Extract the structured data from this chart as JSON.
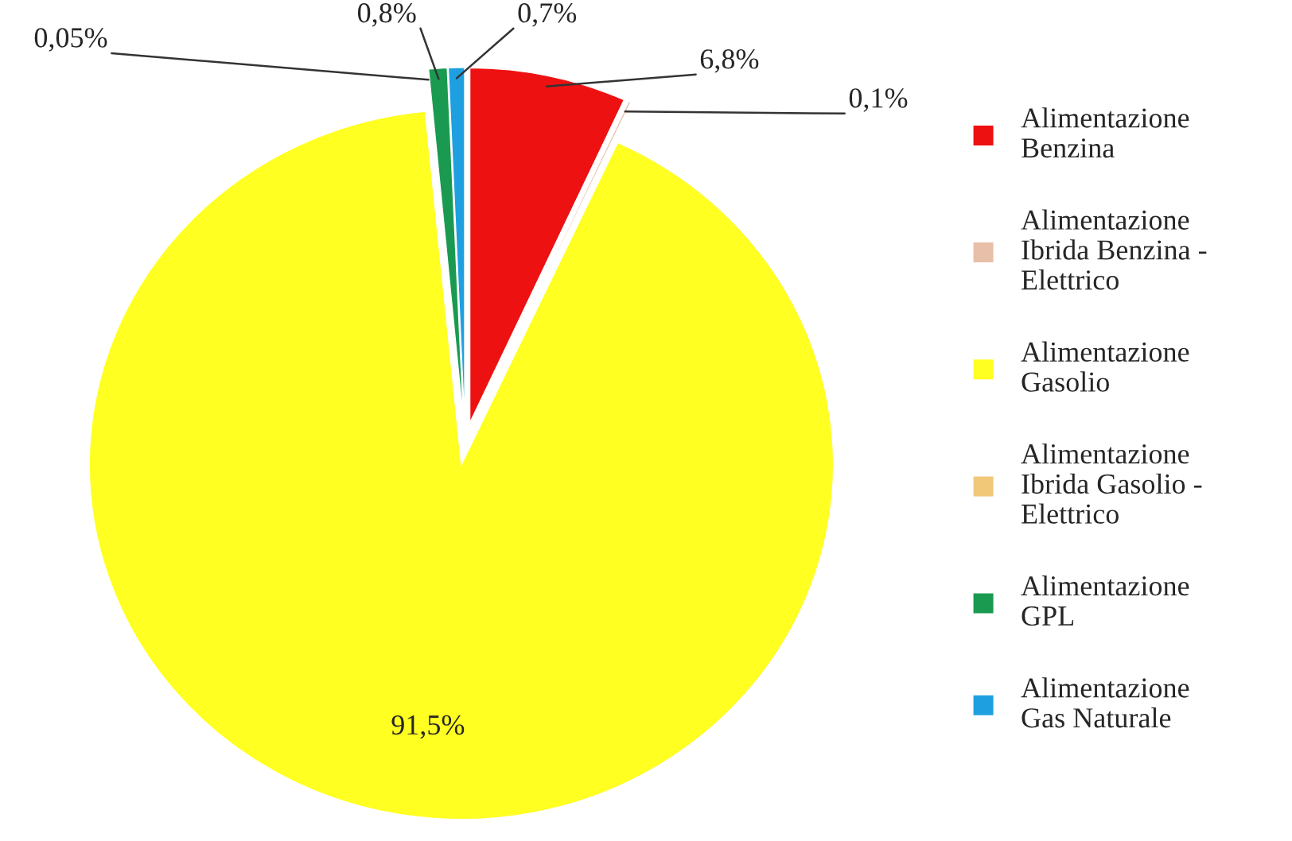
{
  "chart_data": {
    "type": "pie",
    "categories": [
      "Alimentazione Benzina",
      "Alimentazione Ibrida Benzina - Elettrico",
      "Alimentazione Gasolio",
      "Alimentazione Ibrida Gasolio - Elettrico",
      "Alimentazione GPL",
      "Alimentazione Gas Naturale"
    ],
    "values": [
      6.8,
      0.1,
      91.5,
      0.05,
      0.8,
      0.7
    ],
    "value_labels": [
      "6,8%",
      "0,1%",
      "91,5%",
      "0,05%",
      "0,8%",
      "0,7%"
    ],
    "colors": [
      "#ee1111",
      "#e8bfa8",
      "#ffff22",
      "#f0c878",
      "#1a9a50",
      "#1ea0e0"
    ],
    "legend": "right"
  }
}
